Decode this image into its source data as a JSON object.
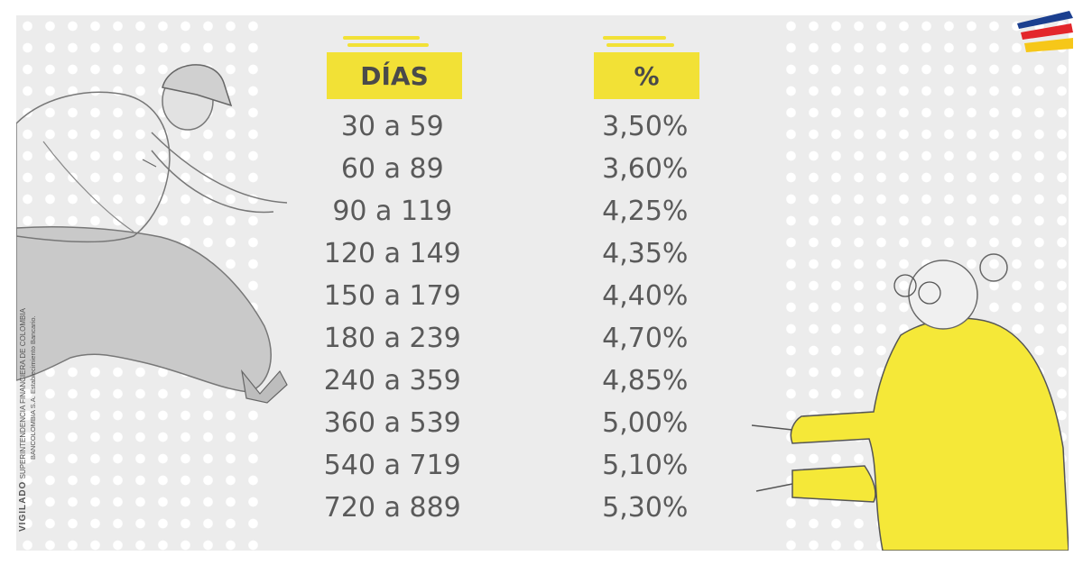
{
  "table": {
    "header_days": "DÍAS",
    "header_pct": "%",
    "rows": [
      {
        "days": "30 a 59",
        "rate": "3,50%"
      },
      {
        "days": "60 a 89",
        "rate": "3,60%"
      },
      {
        "days": "90 a 119",
        "rate": "4,25%"
      },
      {
        "days": "120 a 149",
        "rate": "4,35%"
      },
      {
        "days": "150 a 179",
        "rate": "4,40%"
      },
      {
        "days": "180 a 239",
        "rate": "4,70%"
      },
      {
        "days": "240 a 359",
        "rate": "4,85%"
      },
      {
        "days": "360 a 539",
        "rate": "5,00%"
      },
      {
        "days": "540 a 719",
        "rate": "5,10%"
      },
      {
        "days": "720 a 889",
        "rate": "5,30%"
      }
    ]
  },
  "legal": {
    "vigilado": "VIGILADO",
    "superintendencia": "SUPERINTENDENCIA FINANCIERA DE COLOMBIA",
    "bank_note": "BANCOLOMBIA S.A. Establecimiento Bancario."
  },
  "colors": {
    "accent_yellow": "#f2e136",
    "panel_grey": "#ececec",
    "text_grey": "#5a5a5a",
    "logo_blue": "#1b3f8f",
    "logo_red": "#e3262b",
    "logo_yellow": "#f6c719"
  },
  "icons": [
    "bank-logo-icon",
    "man-illustration",
    "woman-illustration"
  ]
}
